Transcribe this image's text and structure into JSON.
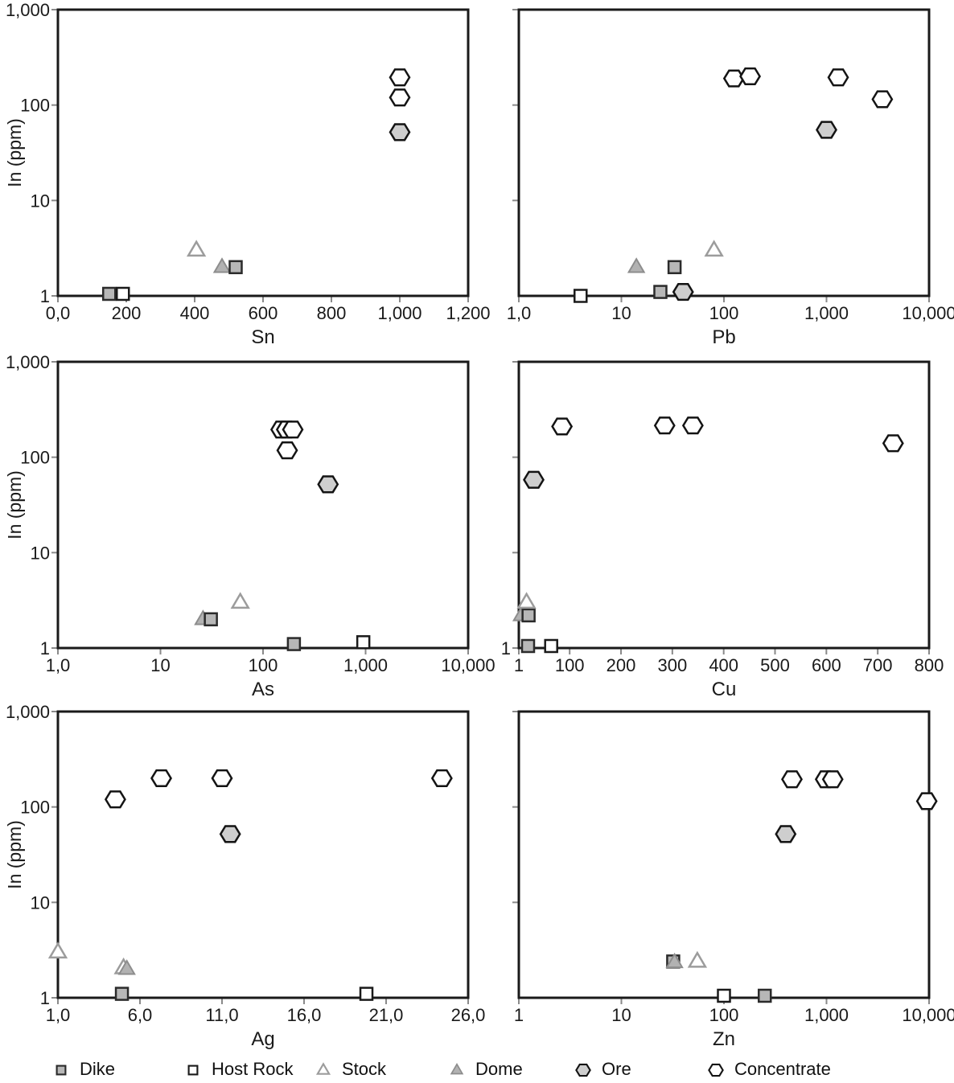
{
  "figure": {
    "y_axis_title": "In (ppm)",
    "background": "#ffffff",
    "frame_color": "#1a1a1a",
    "tick_color": "#8a8a8a"
  },
  "markers": {
    "dike": {
      "label": "Dike",
      "shape": "square",
      "fill": "#b7b7b7",
      "stroke": "#2b2b2b",
      "size": 15,
      "stroke_width": 2.5
    },
    "host_rock": {
      "label": "Host Rock",
      "shape": "square",
      "fill": "#ffffff",
      "stroke": "#1a1a1a",
      "size": 15,
      "stroke_width": 2.5
    },
    "stock": {
      "label": "Stock",
      "shape": "triangle",
      "fill": "#ffffff",
      "stroke": "#9c9c9c",
      "size": 20,
      "stroke_width": 2.5
    },
    "dome": {
      "label": "Dome",
      "shape": "triangle",
      "fill": "#b2b2b2",
      "stroke": "#8d8d8d",
      "size": 19,
      "stroke_width": 2
    },
    "ore": {
      "label": "Ore",
      "shape": "hexagon",
      "fill": "#cecece",
      "stroke": "#141414",
      "size": 24,
      "stroke_width": 2.5
    },
    "concentrate": {
      "label": "Concentrate",
      "shape": "hexagon",
      "fill": "#ffffff",
      "stroke": "#141414",
      "size": 24,
      "stroke_width": 2.5
    }
  },
  "legend": {
    "items": [
      {
        "series": "dike",
        "label": "Dike"
      },
      {
        "series": "host_rock",
        "label": "Host Rock"
      },
      {
        "series": "stock",
        "label": "Stock"
      },
      {
        "series": "dome",
        "label": "Dome"
      },
      {
        "series": "ore",
        "label": "Ore"
      },
      {
        "series": "concentrate",
        "label": "Concentrate"
      }
    ]
  },
  "chart_data": [
    {
      "id": "sn",
      "type": "scatter",
      "xlabel": "Sn",
      "y_axis_title": "In (ppm)",
      "x_scale": "linear",
      "x_min": 0,
      "x_max": 1200,
      "x_ticks": [
        {
          "v": 0,
          "t": "0,0"
        },
        {
          "v": 200,
          "t": "200"
        },
        {
          "v": 400,
          "t": "400"
        },
        {
          "v": 600,
          "t": "600"
        },
        {
          "v": 800,
          "t": "800"
        },
        {
          "v": 1000,
          "t": "1,000"
        },
        {
          "v": 1200,
          "t": "1,200"
        }
      ],
      "y_scale": "log",
      "y_min": 1,
      "y_max": 1000,
      "y_ticks": [
        {
          "v": 1000,
          "t": "1,000"
        },
        {
          "v": 100,
          "t": "100"
        },
        {
          "v": 10,
          "t": "10"
        },
        {
          "v": 1,
          "t": "1"
        }
      ],
      "series": [
        {
          "key": "dome",
          "points": [
            [
              480,
              2
            ]
          ]
        },
        {
          "key": "dike",
          "points": [
            [
              150,
              1.05
            ],
            [
              520,
              2
            ]
          ]
        },
        {
          "key": "host_rock",
          "points": [
            [
              190,
              1.05
            ]
          ]
        },
        {
          "key": "stock",
          "points": [
            [
              405,
              3
            ]
          ]
        },
        {
          "key": "ore",
          "points": [
            [
              1000,
              52
            ]
          ]
        },
        {
          "key": "concentrate",
          "points": [
            [
              1000,
              195
            ],
            [
              1000,
              120
            ]
          ]
        }
      ]
    },
    {
      "id": "pb",
      "type": "scatter",
      "xlabel": "Pb",
      "y_axis_title": "",
      "x_scale": "log",
      "x_min": 1,
      "x_max": 10000,
      "x_ticks": [
        {
          "v": 1,
          "t": "1,0"
        },
        {
          "v": 10,
          "t": "10"
        },
        {
          "v": 100,
          "t": "100"
        },
        {
          "v": 1000,
          "t": "1,000"
        },
        {
          "v": 10000,
          "t": "10,000"
        }
      ],
      "y_scale": "log",
      "y_min": 1,
      "y_max": 1000,
      "y_ticks": [
        {
          "v": 1000,
          "t": ""
        },
        {
          "v": 100,
          "t": ""
        },
        {
          "v": 10,
          "t": ""
        }
      ],
      "series": [
        {
          "key": "dome",
          "points": [
            [
              14,
              2
            ]
          ]
        },
        {
          "key": "dike",
          "points": [
            [
              24,
              1.1
            ],
            [
              33,
              2
            ]
          ]
        },
        {
          "key": "host_rock",
          "points": [
            [
              4,
              1.0
            ]
          ]
        },
        {
          "key": "stock",
          "points": [
            [
              80,
              3
            ]
          ]
        },
        {
          "key": "ore",
          "points": [
            [
              40,
              1.1
            ],
            [
              1000,
              55
            ]
          ]
        },
        {
          "key": "concentrate",
          "points": [
            [
              125,
              190
            ],
            [
              180,
              200
            ],
            [
              1300,
              195
            ],
            [
              3500,
              115
            ]
          ]
        }
      ]
    },
    {
      "id": "as",
      "type": "scatter",
      "xlabel": "As",
      "y_axis_title": "In (ppm)",
      "x_scale": "log",
      "x_min": 1,
      "x_max": 10000,
      "x_ticks": [
        {
          "v": 1,
          "t": "1,0"
        },
        {
          "v": 10,
          "t": "10"
        },
        {
          "v": 100,
          "t": "100"
        },
        {
          "v": 1000,
          "t": "1,000"
        },
        {
          "v": 10000,
          "t": "10,000"
        }
      ],
      "y_scale": "log",
      "y_min": 1,
      "y_max": 1000,
      "y_ticks": [
        {
          "v": 1000,
          "t": "1,000"
        },
        {
          "v": 100,
          "t": "100"
        },
        {
          "v": 10,
          "t": "10"
        },
        {
          "v": 1,
          "t": "1"
        }
      ],
      "series": [
        {
          "key": "dome",
          "points": [
            [
              26,
              2
            ]
          ]
        },
        {
          "key": "dike",
          "points": [
            [
              31,
              2
            ],
            [
              200,
              1.1
            ]
          ]
        },
        {
          "key": "stock",
          "points": [
            [
              60,
              3
            ]
          ]
        },
        {
          "key": "host_rock",
          "points": [
            [
              950,
              1.15
            ]
          ]
        },
        {
          "key": "ore",
          "points": [
            [
              430,
              52
            ]
          ]
        },
        {
          "key": "concentrate",
          "points": [
            [
              150,
              195
            ],
            [
              170,
              195
            ],
            [
              195,
              195
            ],
            [
              172,
              118
            ]
          ]
        }
      ]
    },
    {
      "id": "cu",
      "type": "scatter",
      "xlabel": "Cu",
      "y_axis_title": "",
      "x_scale": "linear",
      "x_min": 1,
      "x_max": 800,
      "x_ticks": [
        {
          "v": 1,
          "t": "1"
        },
        {
          "v": 100,
          "t": "100"
        },
        {
          "v": 200,
          "t": "200"
        },
        {
          "v": 300,
          "t": "300"
        },
        {
          "v": 400,
          "t": "400"
        },
        {
          "v": 500,
          "t": "500"
        },
        {
          "v": 600,
          "t": "600"
        },
        {
          "v": 700,
          "t": "700"
        },
        {
          "v": 800,
          "t": "800"
        }
      ],
      "y_scale": "log",
      "y_min": 1,
      "y_max": 1000,
      "y_ticks": [
        {
          "v": 1000,
          "t": ""
        },
        {
          "v": 100,
          "t": ""
        },
        {
          "v": 10,
          "t": ""
        },
        {
          "v": 1,
          "t": "1"
        }
      ],
      "series": [
        {
          "key": "dome",
          "points": [
            [
              6,
              2.2
            ]
          ]
        },
        {
          "key": "dike",
          "points": [
            [
              20,
              2.2
            ],
            [
              19,
              1.05
            ]
          ]
        },
        {
          "key": "stock",
          "points": [
            [
              16,
              3
            ]
          ]
        },
        {
          "key": "host_rock",
          "points": [
            [
              64,
              1.05
            ]
          ]
        },
        {
          "key": "ore",
          "points": [
            [
              30,
              58
            ]
          ]
        },
        {
          "key": "concentrate",
          "points": [
            [
              85,
              210
            ],
            [
              285,
              215
            ],
            [
              340,
              215
            ],
            [
              730,
              140
            ]
          ]
        }
      ]
    },
    {
      "id": "ag",
      "type": "scatter",
      "xlabel": "Ag",
      "y_axis_title": "In (ppm)",
      "x_scale": "linear",
      "x_min": 1,
      "x_max": 26,
      "x_ticks": [
        {
          "v": 1,
          "t": "1,0"
        },
        {
          "v": 6,
          "t": "6,0"
        },
        {
          "v": 11,
          "t": "11,0"
        },
        {
          "v": 16,
          "t": "16,0"
        },
        {
          "v": 21,
          "t": "21,0"
        },
        {
          "v": 26,
          "t": "26,0"
        }
      ],
      "y_scale": "log",
      "y_min": 1,
      "y_max": 1000,
      "y_ticks": [
        {
          "v": 1000,
          "t": "1,000"
        },
        {
          "v": 100,
          "t": "100"
        },
        {
          "v": 10,
          "t": "10"
        },
        {
          "v": 1,
          "t": "1"
        }
      ],
      "series": [
        {
          "key": "stock",
          "points": [
            [
              1,
              3
            ],
            [
              5,
              2.05
            ]
          ]
        },
        {
          "key": "dome",
          "points": [
            [
              5.2,
              2
            ]
          ]
        },
        {
          "key": "dike",
          "points": [
            [
              4.9,
              1.1
            ]
          ]
        },
        {
          "key": "host_rock",
          "points": [
            [
              19.8,
              1.1
            ]
          ]
        },
        {
          "key": "ore",
          "points": [
            [
              11.5,
              52
            ]
          ]
        },
        {
          "key": "concentrate",
          "points": [
            [
              4.5,
              120
            ],
            [
              7.3,
              200
            ],
            [
              11,
              200
            ],
            [
              24.4,
              200
            ]
          ]
        }
      ]
    },
    {
      "id": "zn",
      "type": "scatter",
      "xlabel": "Zn",
      "y_axis_title": "",
      "x_scale": "log",
      "x_min": 1,
      "x_max": 10000,
      "x_ticks": [
        {
          "v": 1,
          "t": "1"
        },
        {
          "v": 10,
          "t": "10"
        },
        {
          "v": 100,
          "t": "100"
        },
        {
          "v": 1000,
          "t": "1,000"
        },
        {
          "v": 10000,
          "t": "10,000"
        }
      ],
      "y_scale": "log",
      "y_min": 1,
      "y_max": 1000,
      "y_ticks": [
        {
          "v": 1000,
          "t": ""
        },
        {
          "v": 100,
          "t": ""
        },
        {
          "v": 10,
          "t": ""
        }
      ],
      "series": [
        {
          "key": "dike",
          "points": [
            [
              32,
              2.4
            ],
            [
              250,
              1.05
            ]
          ]
        },
        {
          "key": "dome",
          "points": [
            [
              33,
              2.35
            ]
          ]
        },
        {
          "key": "stock",
          "points": [
            [
              55,
              2.4
            ]
          ]
        },
        {
          "key": "host_rock",
          "points": [
            [
              100,
              1.05
            ]
          ]
        },
        {
          "key": "ore",
          "points": [
            [
              400,
              52
            ]
          ]
        },
        {
          "key": "concentrate",
          "points": [
            [
              460,
              195
            ],
            [
              980,
              195
            ],
            [
              1150,
              195
            ],
            [
              9500,
              115
            ]
          ]
        }
      ]
    }
  ]
}
